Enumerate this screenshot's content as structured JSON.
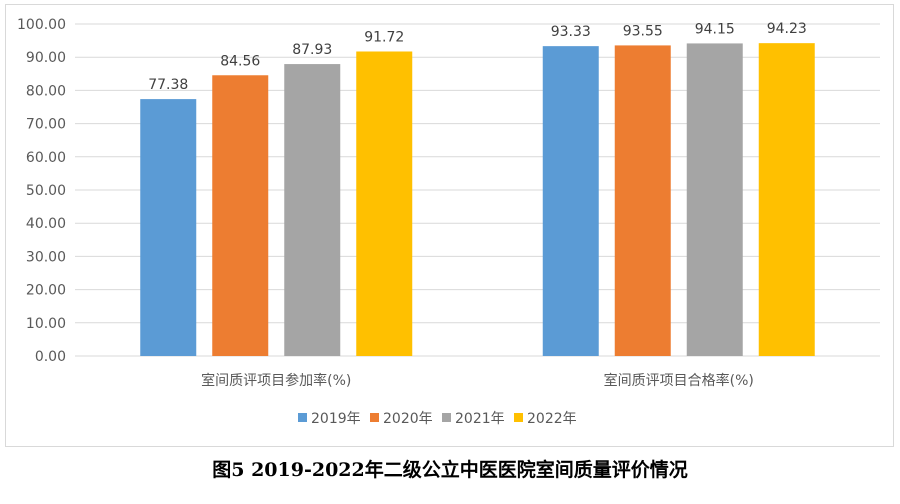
{
  "chart_data": {
    "type": "bar",
    "categories": [
      "室间质评项目参加率(%)",
      "室间质评项目合格率(%)"
    ],
    "series": [
      {
        "name": "2019年",
        "color": "#5b9bd5",
        "values": [
          77.38,
          93.33
        ]
      },
      {
        "name": "2020年",
        "color": "#ed7d31",
        "values": [
          84.56,
          93.55
        ]
      },
      {
        "name": "2021年",
        "color": "#a5a5a5",
        "values": [
          87.93,
          94.15
        ]
      },
      {
        "name": "2022年",
        "color": "#ffc000",
        "values": [
          91.72,
          94.23
        ]
      }
    ],
    "data_labels": [
      [
        "77.38",
        "93.33"
      ],
      [
        "84.56",
        "93.55"
      ],
      [
        "87.93",
        "94.15"
      ],
      [
        "91.72",
        "94.23"
      ]
    ],
    "ylim": [
      0,
      100
    ],
    "yticks": [
      "0.00",
      "10.00",
      "20.00",
      "30.00",
      "40.00",
      "50.00",
      "60.00",
      "70.00",
      "80.00",
      "90.00",
      "100.00"
    ],
    "grid": true,
    "legend": "bottom"
  },
  "caption": "图5 2019-2022年二级公立中医医院室间质量评价情况"
}
